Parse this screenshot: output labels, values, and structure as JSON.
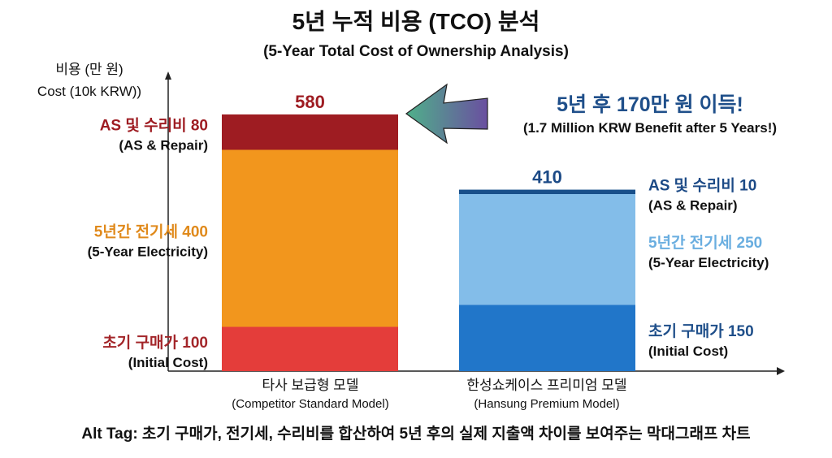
{
  "chart_data": {
    "type": "bar",
    "stacked": true,
    "title": "5년 누적 비용 (TCO) 분석",
    "subtitle": "(5-Year Total Cost of Ownership Analysis)",
    "ylabel": [
      "비용 (만 원)",
      "Cost (10k KRW))"
    ],
    "xlabel": "",
    "grid": false,
    "categories": [
      {
        "ko": "타사 보급형 모델",
        "en": "(Competitor Standard Model)"
      },
      {
        "ko": "한성쇼케이스 프리미엄 모델",
        "en": "(Hansung Premium Model)"
      }
    ],
    "totals": [
      580,
      410
    ],
    "bars": [
      {
        "segments": [
          {
            "ko": "초기 구매가 100",
            "en": "(Initial Cost)",
            "value": 100,
            "color": "#e43d3a",
            "label_color": "#a3262a"
          },
          {
            "ko": "5년간 전기세 400",
            "en": "(5-Year Electricity)",
            "value": 400,
            "color": "#f2961d",
            "label_color": "#e08a1c"
          },
          {
            "ko": "AS 및 수리비 80",
            "en": "(AS & Repair)",
            "value": 80,
            "color": "#9e1c22",
            "label_color": "#9e1c22"
          }
        ],
        "total_color": "#9e1c22"
      },
      {
        "segments": [
          {
            "ko": "초기 구매가 150",
            "en": "(Initial Cost)",
            "value": 150,
            "color": "#2176c9",
            "label_color": "#1f4f8a"
          },
          {
            "ko": "5년간 전기세 250",
            "en": "(5-Year Electricity)",
            "value": 250,
            "color": "#83bde9",
            "label_color": "#6aaee0"
          },
          {
            "ko": "AS 및 수리비 10",
            "en": "(AS & Repair)",
            "value": 10,
            "color": "#184f8a",
            "label_color": "#1c4a86"
          }
        ],
        "total_color": "#1c4a86"
      }
    ],
    "annotation": {
      "ko": "5년 후 170만 원 이득!",
      "en": "(1.7 Million KRW Benefit after 5 Years!)",
      "color": "#1f4f8a",
      "arrow_colors": [
        "#4fb08a",
        "#6a4fa0"
      ]
    },
    "caption": "Alt Tag: 초기 구매가, 전기세, 수리비를 합산하여 5년 후의 실제 지출액 차이를 보여주는 막대그래프 차트"
  }
}
